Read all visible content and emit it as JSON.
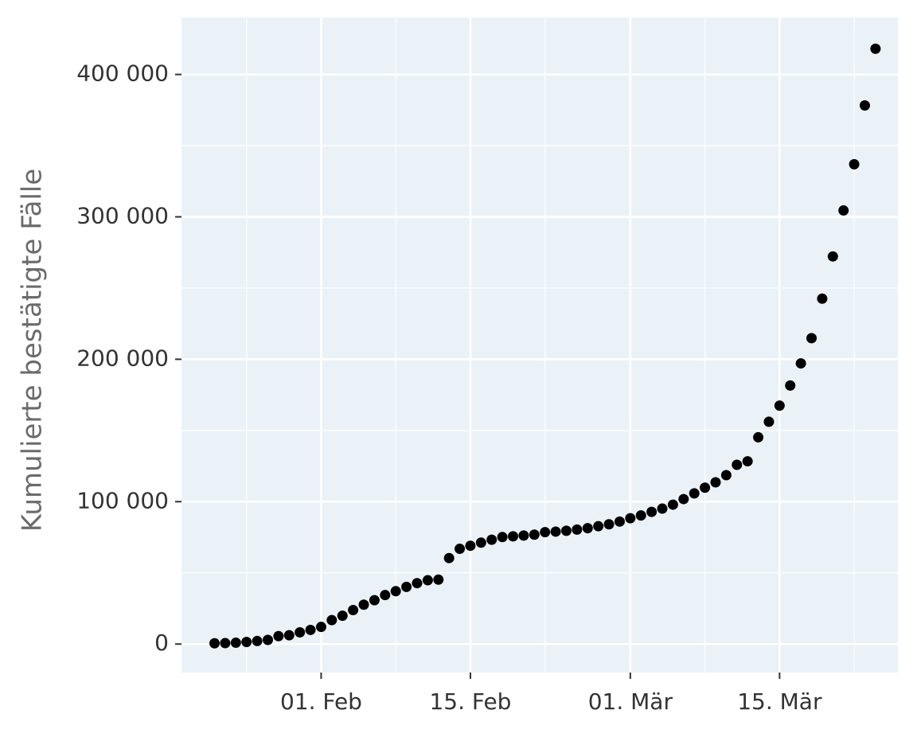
{
  "chart_data": {
    "type": "scatter",
    "ylabel": "Kumulierte bestätigte Fälle",
    "x": [
      "22. Jan",
      "23. Jan",
      "24. Jan",
      "25. Jan",
      "26. Jan",
      "27. Jan",
      "28. Jan",
      "29. Jan",
      "30. Jan",
      "31. Jan",
      "01. Feb",
      "02. Feb",
      "03. Feb",
      "04. Feb",
      "05. Feb",
      "06. Feb",
      "07. Feb",
      "08. Feb",
      "09. Feb",
      "10. Feb",
      "11. Feb",
      "12. Feb",
      "13. Feb",
      "14. Feb",
      "15. Feb",
      "16. Feb",
      "17. Feb",
      "18. Feb",
      "19. Feb",
      "20. Feb",
      "21. Feb",
      "22. Feb",
      "23. Feb",
      "24. Feb",
      "25. Feb",
      "26. Feb",
      "27. Feb",
      "28. Feb",
      "29. Feb",
      "01. Mär",
      "02. Mär",
      "03. Mär",
      "04. Mär",
      "05. Mär",
      "06. Mär",
      "07. Mär",
      "08. Mär",
      "09. Mär",
      "10. Mär",
      "11. Mär",
      "12. Mär",
      "13. Mär",
      "14. Mär",
      "15. Mär",
      "16. Mär",
      "17. Mär",
      "18. Mär",
      "19. Mär",
      "20. Mär",
      "21. Mär",
      "22. Mär",
      "23. Mär",
      "24. Mär"
    ],
    "values": [
      555,
      654,
      941,
      1434,
      2118,
      2927,
      5578,
      6166,
      8234,
      9927,
      12038,
      16787,
      19881,
      23892,
      27635,
      30794,
      34391,
      37120,
      40150,
      42762,
      44802,
      45221,
      60368,
      66885,
      69030,
      71224,
      73258,
      75136,
      75639,
      76197,
      76819,
      78572,
      78958,
      79561,
      80406,
      81388,
      82746,
      84112,
      86011,
      88369,
      90306,
      92840,
      95120,
      97886,
      101801,
      105847,
      109821,
      113590,
      118620,
      125875,
      128352,
      145205,
      156101,
      167454,
      181574,
      197102,
      214821,
      242570,
      272208,
      304507,
      336953,
      378235,
      418045
    ],
    "color": "#000000",
    "xticks": [
      "01. Feb",
      "15. Feb",
      "01. Mär",
      "15. Mär"
    ],
    "xminorticks": [
      "25. Jan",
      "08. Feb",
      "22. Feb",
      "08. Mär",
      "22. Mär"
    ],
    "ylim": [
      -20000,
      440000
    ],
    "yticks": [
      {
        "value": 0,
        "label": "0"
      },
      {
        "value": 100000,
        "label": "100 000"
      },
      {
        "value": 200000,
        "label": "200 000"
      },
      {
        "value": 300000,
        "label": "300 000"
      },
      {
        "value": 400000,
        "label": "400 000"
      }
    ],
    "yminorticks": [
      50000,
      150000,
      250000,
      350000
    ],
    "grid": true
  }
}
